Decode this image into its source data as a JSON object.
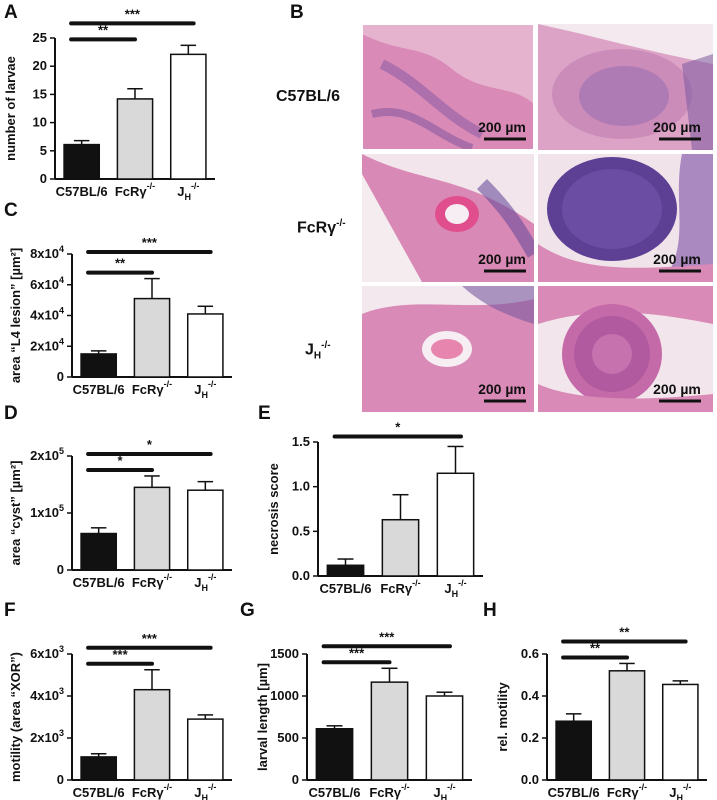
{
  "panel_letters": {
    "A": "A",
    "B": "B",
    "C": "C",
    "D": "D",
    "E": "E",
    "F": "F",
    "G": "G",
    "H": "H"
  },
  "panel_b": {
    "rows": [
      {
        "pre": "C57BL/6",
        "sub": "",
        "sup": ""
      },
      {
        "pre": "FcRγ",
        "sub": "",
        "sup": "-/-"
      },
      {
        "pre": "J",
        "sub": "H",
        "sup": "-/-"
      }
    ],
    "scale_bar_label": "200 µm",
    "colors": {
      "tissue": "#d98ab6",
      "tissue_dark": "#6a4c9c",
      "background": "#f4ecef"
    }
  },
  "colors": {
    "bar_c57": "#111111",
    "bar_fcr": "#d9d9d9",
    "bar_jh": "#ffffff",
    "stroke": "#111111"
  },
  "chart_data": [
    {
      "id": "A",
      "type": "bar",
      "categories": [
        "C57BL/6",
        "FcRγ-/-",
        "JH-/-"
      ],
      "values": [
        6.1,
        14.2,
        22.1
      ],
      "errors": [
        0.7,
        1.8,
        1.6
      ],
      "ylabel": "number of larvae",
      "ylim": [
        0,
        25
      ],
      "yticks": [
        0,
        5,
        10,
        15,
        20,
        25
      ],
      "significance": [
        {
          "from": 0,
          "to": 1,
          "label": "**"
        },
        {
          "from": 0,
          "to": 2,
          "label": "***"
        }
      ]
    },
    {
      "id": "C",
      "type": "bar",
      "categories": [
        "C57BL/6",
        "FcRγ-/-",
        "JH-/-"
      ],
      "values": [
        15000,
        51000,
        41000
      ],
      "errors": [
        2000,
        13000,
        5000
      ],
      "ylabel": "area “L4 lesion” [µm²]",
      "ylim": [
        0,
        80000
      ],
      "yticks": [
        0,
        20000,
        40000,
        60000,
        80000
      ],
      "ytick_labels": [
        {
          "m": "0",
          "e": ""
        },
        {
          "m": "2x10",
          "e": "4"
        },
        {
          "m": "4x10",
          "e": "4"
        },
        {
          "m": "6x10",
          "e": "4"
        },
        {
          "m": "8x10",
          "e": "4"
        }
      ],
      "significance": [
        {
          "from": 0,
          "to": 1,
          "label": "**"
        },
        {
          "from": 0,
          "to": 2,
          "label": "***"
        }
      ]
    },
    {
      "id": "D",
      "type": "bar",
      "categories": [
        "C57BL/6",
        "FcRγ-/-",
        "JH-/-"
      ],
      "values": [
        64000,
        145000,
        140000
      ],
      "errors": [
        10000,
        20000,
        15000
      ],
      "ylabel": "area “cyst” [µm²]",
      "ylim": [
        0,
        200000
      ],
      "yticks": [
        0,
        100000,
        200000
      ],
      "ytick_labels": [
        {
          "m": "0",
          "e": ""
        },
        {
          "m": "1x10",
          "e": "5"
        },
        {
          "m": "2x10",
          "e": "5"
        }
      ],
      "significance": [
        {
          "from": 0,
          "to": 1,
          "label": "*"
        },
        {
          "from": 0,
          "to": 2,
          "label": "*"
        }
      ]
    },
    {
      "id": "E",
      "type": "bar",
      "categories": [
        "C57BL/6",
        "FcRγ-/-",
        "JH-/-"
      ],
      "values": [
        0.12,
        0.63,
        1.15
      ],
      "errors": [
        0.07,
        0.28,
        0.3
      ],
      "ylabel": "necrosis score",
      "ylim": [
        0,
        1.5
      ],
      "yticks": [
        0,
        0.5,
        1.0,
        1.5
      ],
      "ytick_labels": [
        {
          "m": "0.0",
          "e": ""
        },
        {
          "m": "0.5",
          "e": ""
        },
        {
          "m": "1.0",
          "e": ""
        },
        {
          "m": "1.5",
          "e": ""
        }
      ],
      "significance": [
        {
          "from": 0,
          "to": 2,
          "label": "*"
        }
      ]
    },
    {
      "id": "F",
      "type": "bar",
      "categories": [
        "C57BL/6",
        "FcRγ-/-",
        "JH-/-"
      ],
      "values": [
        1100,
        4300,
        2900
      ],
      "errors": [
        150,
        950,
        200
      ],
      "ylabel": "motility (area “XOR”)",
      "ylim": [
        0,
        6000
      ],
      "yticks": [
        0,
        2000,
        4000,
        6000
      ],
      "ytick_labels": [
        {
          "m": "0",
          "e": ""
        },
        {
          "m": "2x10",
          "e": "3"
        },
        {
          "m": "4x10",
          "e": "3"
        },
        {
          "m": "6x10",
          "e": "3"
        }
      ],
      "significance": [
        {
          "from": 0,
          "to": 1,
          "label": "***"
        },
        {
          "from": 0,
          "to": 2,
          "label": "***"
        }
      ]
    },
    {
      "id": "G",
      "type": "bar",
      "categories": [
        "C57BL/6",
        "FcRγ-/-",
        "JH-/-"
      ],
      "values": [
        610,
        1165,
        1000
      ],
      "errors": [
        35,
        165,
        45
      ],
      "ylabel": "larval length [µm]",
      "ylim": [
        0,
        1500
      ],
      "yticks": [
        0,
        500,
        1000,
        1500
      ],
      "significance": [
        {
          "from": 0,
          "to": 1,
          "label": "***"
        },
        {
          "from": 0,
          "to": 2,
          "label": "***"
        }
      ]
    },
    {
      "id": "H",
      "type": "bar",
      "categories": [
        "C57BL/6",
        "FcRγ-/-",
        "JH-/-"
      ],
      "values": [
        0.28,
        0.52,
        0.455
      ],
      "errors": [
        0.035,
        0.035,
        0.017
      ],
      "ylabel": "rel. motility",
      "ylim": [
        0,
        0.6
      ],
      "yticks": [
        0,
        0.2,
        0.4,
        0.6
      ],
      "ytick_labels": [
        {
          "m": "0.0",
          "e": ""
        },
        {
          "m": "0.2",
          "e": ""
        },
        {
          "m": "0.4",
          "e": ""
        },
        {
          "m": "0.6",
          "e": ""
        }
      ],
      "significance": [
        {
          "from": 0,
          "to": 1,
          "label": "**"
        },
        {
          "from": 0,
          "to": 2,
          "label": "**"
        }
      ]
    }
  ]
}
